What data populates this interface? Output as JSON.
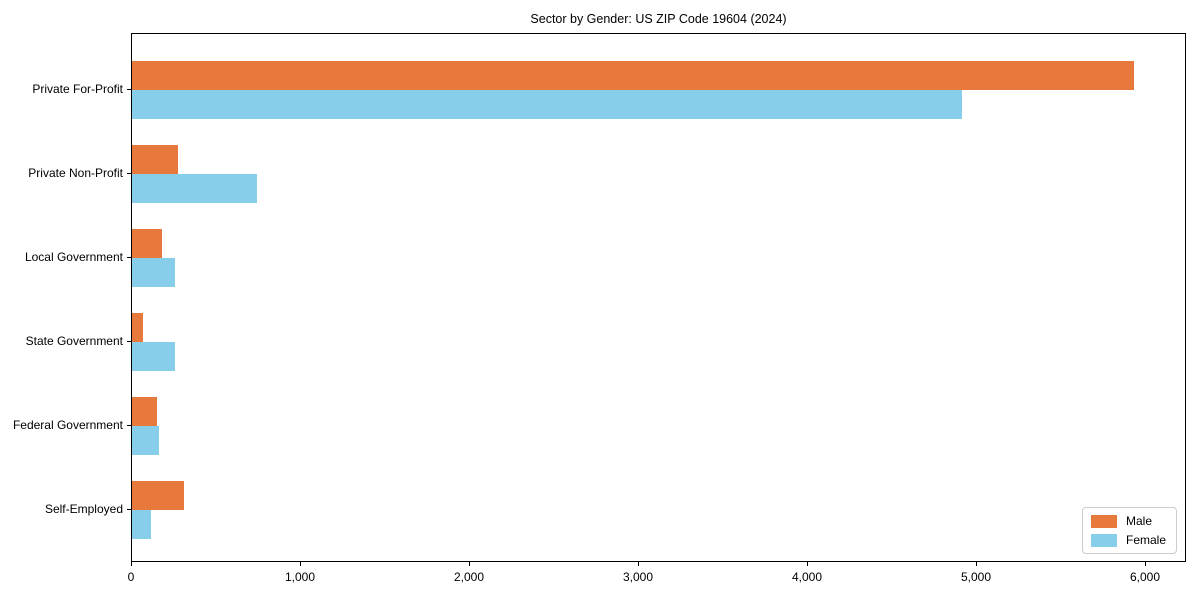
{
  "chart_data": {
    "type": "bar",
    "orientation": "horizontal",
    "title": "Sector by Gender: US ZIP Code 19604 (2024)",
    "categories": [
      "Private For-Profit",
      "Private Non-Profit",
      "Local Government",
      "State Government",
      "Federal Government",
      "Self-Employed"
    ],
    "series": [
      {
        "name": "Male",
        "color": "#E8793D",
        "values": [
          5930,
          270,
          175,
          65,
          145,
          310
        ]
      },
      {
        "name": "Female",
        "color": "#87CEEB",
        "values": [
          4910,
          740,
          255,
          255,
          160,
          115
        ]
      }
    ],
    "xlabel": "",
    "ylabel": "",
    "xlim": [
      0,
      6245
    ],
    "x_ticks": [
      0,
      1000,
      2000,
      3000,
      4000,
      5000,
      6000
    ],
    "x_tick_labels": [
      "0",
      "1,000",
      "2,000",
      "3,000",
      "4,000",
      "5,000",
      "6,000"
    ],
    "grid": false,
    "legend_position": "lower right",
    "background": "#ffffff",
    "spine_color": "#000000"
  }
}
